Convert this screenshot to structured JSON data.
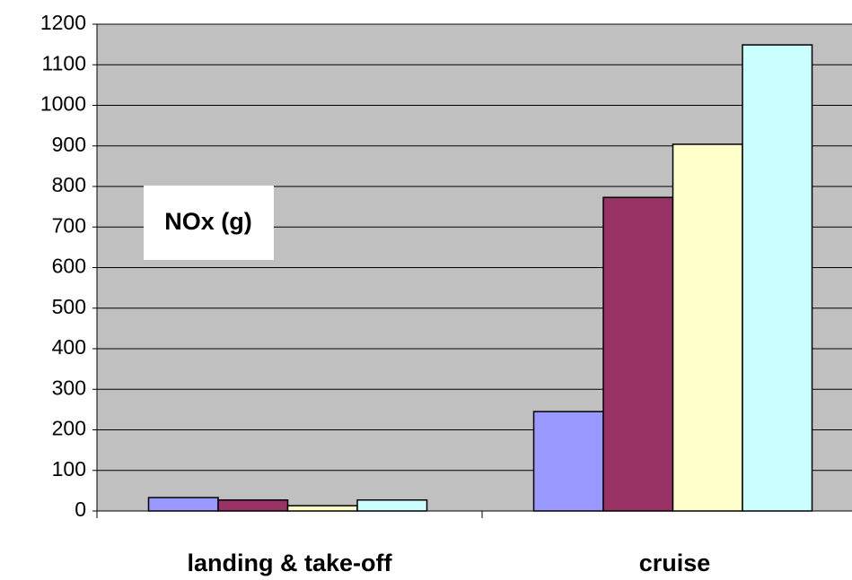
{
  "chart_data": {
    "type": "bar",
    "annotation": "NOx (g)",
    "categories": [
      "landing & take-off",
      "cruise"
    ],
    "series": [
      {
        "color": "#9999ff",
        "values": [
          33,
          245
        ]
      },
      {
        "color": "#993366",
        "values": [
          27,
          773
        ]
      },
      {
        "color": "#ffffcc",
        "values": [
          13,
          904
        ]
      },
      {
        "color": "#ccffff",
        "values": [
          27,
          1149
        ]
      }
    ],
    "ylim": [
      0,
      1200
    ],
    "yticks": [
      0,
      100,
      200,
      300,
      400,
      500,
      600,
      700,
      800,
      900,
      1000,
      1100,
      1200
    ],
    "grid": true
  }
}
